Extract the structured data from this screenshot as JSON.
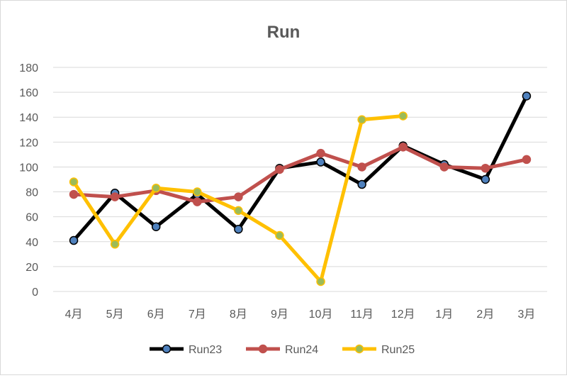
{
  "chart_data": {
    "type": "line",
    "title": "Run",
    "xlabel": "",
    "ylabel": "",
    "categories": [
      "4月",
      "5月",
      "6月",
      "7月",
      "8月",
      "9月",
      "10月",
      "11月",
      "12月",
      "1月",
      "2月",
      "3月"
    ],
    "ylim": [
      0,
      180
    ],
    "yticks": [
      0,
      20,
      40,
      60,
      80,
      100,
      120,
      140,
      160,
      180
    ],
    "grid": true,
    "legend_position": "bottom",
    "series": [
      {
        "name": "Run23",
        "color": "#000000",
        "marker_fill": "#4f81bd",
        "values": [
          41,
          79,
          52,
          78,
          50,
          99,
          104,
          86,
          117,
          102,
          90,
          157
        ]
      },
      {
        "name": "Run24",
        "color": "#c0504d",
        "marker_fill": "#c0504d",
        "values": [
          78,
          76,
          81,
          72,
          76,
          98,
          111,
          100,
          116,
          100,
          99,
          106
        ]
      },
      {
        "name": "Run25",
        "color": "#ffc000",
        "marker_fill": "#9bbb59",
        "values": [
          88,
          38,
          83,
          80,
          65,
          45,
          8,
          138,
          141,
          null,
          null,
          null
        ]
      }
    ]
  }
}
